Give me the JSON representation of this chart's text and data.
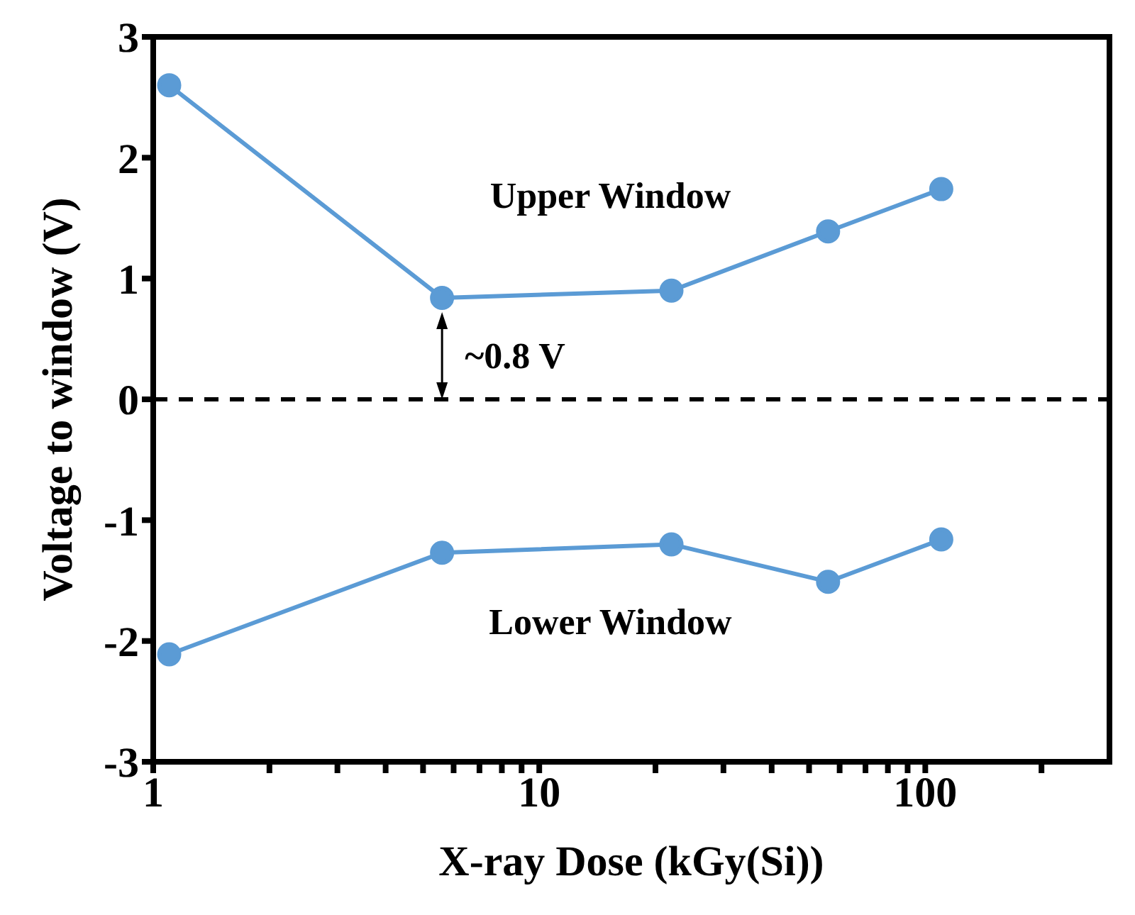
{
  "chart_data": {
    "type": "line",
    "xlabel": "X-ray Dose (kGy(Si))",
    "ylabel": "Voltage to window (V)",
    "x": [
      1.1,
      5.6,
      22,
      56,
      110
    ],
    "series": [
      {
        "name": "Upper Window",
        "color": "#5b9bd5",
        "values": [
          2.6,
          0.84,
          0.9,
          1.39,
          1.74
        ]
      },
      {
        "name": "Lower Window",
        "color": "#5b9bd5",
        "values": [
          -2.11,
          -1.27,
          -1.2,
          -1.51,
          -1.16
        ]
      }
    ],
    "log": "x",
    "xlim": [
      1,
      300
    ],
    "xticks": [
      1,
      {
        "value": 2,
        "label": null
      },
      {
        "value": 3,
        "label": null
      },
      {
        "value": 4,
        "label": null
      },
      {
        "value": 5,
        "label": null
      },
      {
        "value": 6,
        "label": null
      },
      {
        "value": 7,
        "label": null
      },
      {
        "value": 8,
        "label": null
      },
      {
        "value": 9,
        "label": null
      },
      10,
      {
        "value": 20,
        "label": null
      },
      {
        "value": 30,
        "label": null
      },
      {
        "value": 40,
        "label": null
      },
      {
        "value": 50,
        "label": null
      },
      {
        "value": 60,
        "label": null
      },
      {
        "value": 70,
        "label": null
      },
      {
        "value": 80,
        "label": null
      },
      {
        "value": 90,
        "label": null
      },
      100,
      {
        "value": 200,
        "label": null
      }
    ],
    "ylim": [
      -3,
      3
    ],
    "yticks": [
      -3,
      -2,
      -1,
      0,
      1,
      2,
      3
    ],
    "ref_lines": [
      {
        "axis": "y",
        "value": 0,
        "color": "#000000",
        "line_style": "dashed"
      }
    ],
    "annotations": [
      "~0.8 V"
    ],
    "marker": "circle",
    "line_style": "solid",
    "grid": false,
    "legend": false
  }
}
